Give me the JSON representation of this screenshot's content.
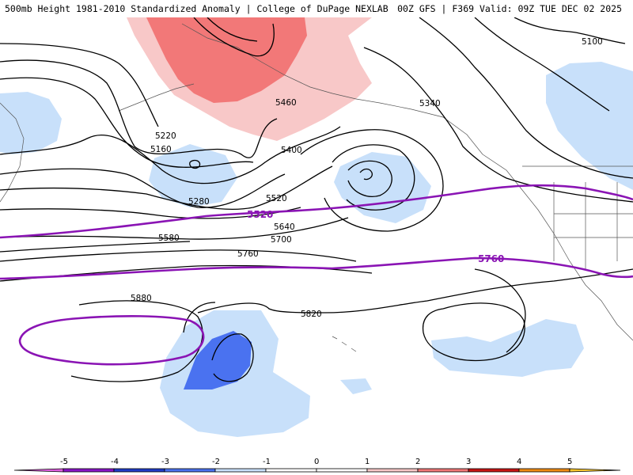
{
  "header": {
    "title": "500mb Height 1981-2010 Standardized Anomaly | College of DuPage NEXLAB",
    "run_info": "00Z GFS | F369 Valid: 09Z TUE DEC 02 2025"
  },
  "contour_labels": [
    "5100",
    "5160",
    "5220",
    "5280",
    "5340",
    "5400",
    "5460",
    "5520",
    "5580",
    "5640",
    "5700",
    "5760",
    "5820",
    "5880"
  ],
  "highlight_labels": [
    "5520",
    "5760"
  ],
  "colors": {
    "anom_neg5": "#e060e0",
    "anom_neg4": "#8a14c8",
    "anom_neg3": "#1f3cc8",
    "anom_neg2": "#4a72f0",
    "anom_neg1": "#c8e0fa",
    "anom_pos1": "#f8c8c8",
    "anom_pos2": "#f27878",
    "anom_pos3": "#c81414",
    "anom_pos4": "#f08c14",
    "anom_pos5": "#f8c830",
    "highlight_contour": "#8a14b4"
  },
  "legend": {
    "ticks": [
      "-5",
      "-4",
      "-3",
      "-2",
      "-1",
      "0",
      "1",
      "2",
      "3",
      "4",
      "5"
    ]
  }
}
